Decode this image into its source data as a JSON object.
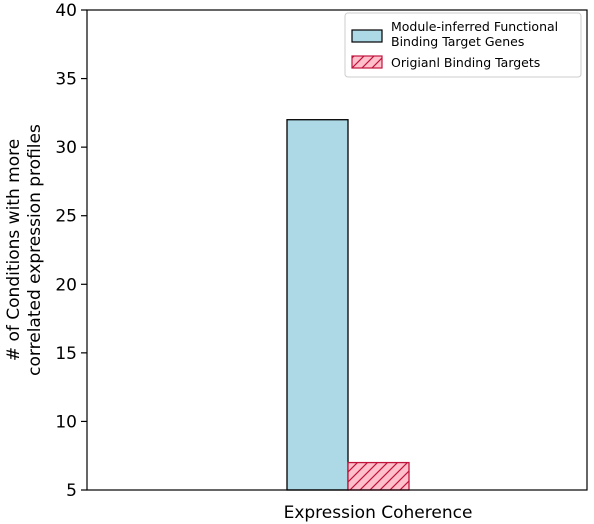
{
  "chart_data": {
    "type": "bar",
    "categories": [
      "Expression Coherence"
    ],
    "series": [
      {
        "name": "Module-inferred Functional Binding Target Genes",
        "legend_lines": [
          "Module-inferred Functional",
          "Binding Target Genes"
        ],
        "values": [
          32
        ],
        "color": "#add8e6",
        "hatch": "none"
      },
      {
        "name": "Origianl Binding Targets",
        "legend_lines": [
          "Origianl Binding Targets"
        ],
        "values": [
          7
        ],
        "color": "#ffc0cb",
        "hatch": "diagonal",
        "hatch_color": "#c0143c"
      }
    ],
    "xlabel": "Expression Coherence",
    "ylabel_lines": [
      "# of Conditions with more",
      "correlated expression profiles"
    ],
    "ylim": [
      5,
      40
    ],
    "yticks": [
      5,
      10,
      15,
      20,
      25,
      30,
      35,
      40
    ],
    "grid": false,
    "legend_position": "top-right"
  }
}
